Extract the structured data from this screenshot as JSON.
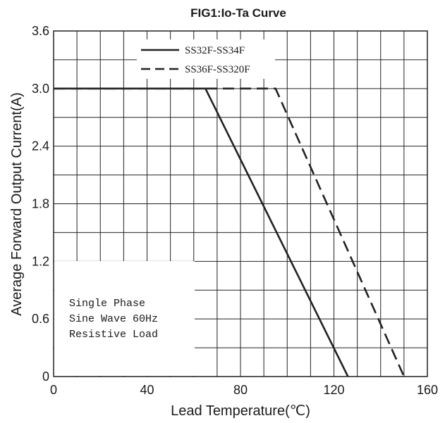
{
  "chart_data": {
    "type": "line",
    "title": "FIG1:Io-Ta Curve",
    "xlabel": "Lead Temperature(℃)",
    "ylabel": "Average Forward Output Current(A)",
    "xlim": [
      0,
      160
    ],
    "ylim": [
      0,
      3.6
    ],
    "x_ticks": [
      "0",
      "40",
      "80",
      "120",
      "160"
    ],
    "y_ticks": [
      "0",
      "0.6",
      "1.2",
      "1.8",
      "2.4",
      "3.0",
      "3.6"
    ],
    "grid": true,
    "legend_position": "top-center",
    "series": [
      {
        "name": "SS32F-SS34F",
        "style": "solid",
        "color": "#222222",
        "points": [
          [
            0,
            3.0
          ],
          [
            65,
            3.0
          ],
          [
            126,
            0
          ]
        ]
      },
      {
        "name": "SS36F-SS320F",
        "style": "dashed",
        "color": "#222222",
        "points": [
          [
            0,
            3.0
          ],
          [
            95,
            3.0
          ],
          [
            150,
            0
          ]
        ]
      }
    ],
    "annotations": [
      "Single Phase",
      "Sine Wave 60Hz",
      "Resistive Load"
    ]
  }
}
